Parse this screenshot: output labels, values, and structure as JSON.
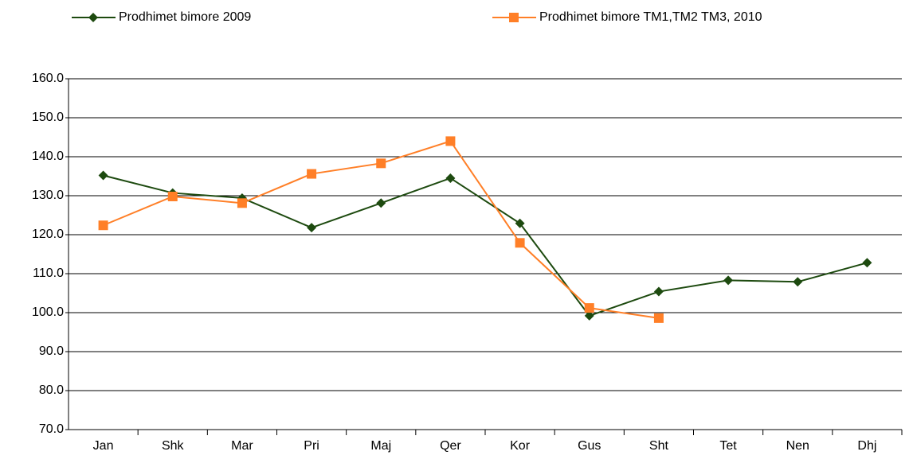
{
  "chart_data": {
    "type": "line",
    "categories": [
      "Jan",
      "Shk",
      "Mar",
      "Pri",
      "Maj",
      "Qer",
      "Kor",
      "Gus",
      "Sht",
      "Tet",
      "Nen",
      "Dhj"
    ],
    "series": [
      {
        "name": "Prodhimet bimore 2009",
        "color": "#1d4a0f",
        "marker": "diamond",
        "values": [
          135.2,
          130.7,
          129.4,
          121.8,
          128.1,
          134.5,
          122.9,
          99.2,
          105.4,
          108.3,
          107.9,
          112.8
        ]
      },
      {
        "name": "Prodhimet bimore TM1,TM2 TM3, 2010",
        "color": "#ff7f27",
        "marker": "square",
        "values": [
          122.4,
          129.8,
          128.1,
          135.6,
          138.3,
          144.0,
          117.9,
          101.2,
          98.6,
          null,
          null,
          null
        ]
      }
    ],
    "ylim": [
      70,
      160
    ],
    "yticks": [
      {
        "value": 70,
        "label": "70.0"
      },
      {
        "value": 80,
        "label": "80.0"
      },
      {
        "value": 90,
        "label": "90.0"
      },
      {
        "value": 100,
        "label": "100.0"
      },
      {
        "value": 110,
        "label": "110.0"
      },
      {
        "value": 120,
        "label": "120.0"
      },
      {
        "value": 130,
        "label": "130.0"
      },
      {
        "value": 140,
        "label": "140.0"
      },
      {
        "value": 150,
        "label": "150.0"
      },
      {
        "value": 160,
        "label": "160.0"
      }
    ],
    "grid": true,
    "legend": "top"
  }
}
